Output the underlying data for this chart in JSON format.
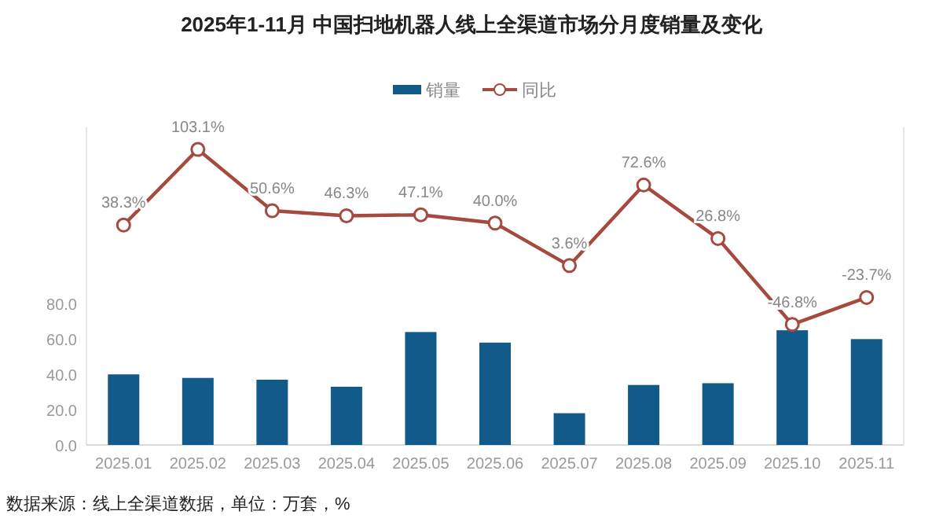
{
  "chart_data": {
    "type": "bar",
    "title": "2025年1-11月 中国扫地机器人线上全渠道市场分月度销量及变化",
    "categories": [
      "2025.01",
      "2025.02",
      "2025.03",
      "2025.04",
      "2025.05",
      "2025.06",
      "2025.07",
      "2025.08",
      "2025.09",
      "2025.10",
      "2025.11"
    ],
    "series": [
      {
        "name": "销量",
        "color": "#125a8a",
        "values": [
          40,
          38,
          37,
          33,
          64,
          58,
          18,
          34,
          35,
          65,
          60
        ]
      },
      {
        "name": "同比",
        "type": "line",
        "axis": "y2",
        "color": "#a54a3f",
        "marker": "circle",
        "values": [
          38.3,
          103.1,
          50.6,
          46.3,
          47.1,
          40.0,
          3.6,
          72.6,
          26.8,
          -46.8,
          -23.7
        ],
        "value_labels": [
          "38.3%",
          "103.1%",
          "50.6%",
          "46.3%",
          "47.1%",
          "40.0%",
          "3.6%",
          "72.6%",
          "26.8%",
          "-46.8%",
          "-23.7%"
        ]
      }
    ],
    "ylim": [
      0,
      180
    ],
    "y2lim": [
      -150,
      122
    ],
    "yticks": [
      {
        "value": 0,
        "label": "0.0"
      },
      {
        "value": 20,
        "label": "20.0"
      },
      {
        "value": 40,
        "label": "40.0"
      },
      {
        "value": 60,
        "label": "60.0"
      },
      {
        "value": 80,
        "label": "80.0"
      }
    ],
    "legend": "top",
    "annotations": [
      "数据来源：线上全渠道数据，单位：万套，%"
    ]
  }
}
